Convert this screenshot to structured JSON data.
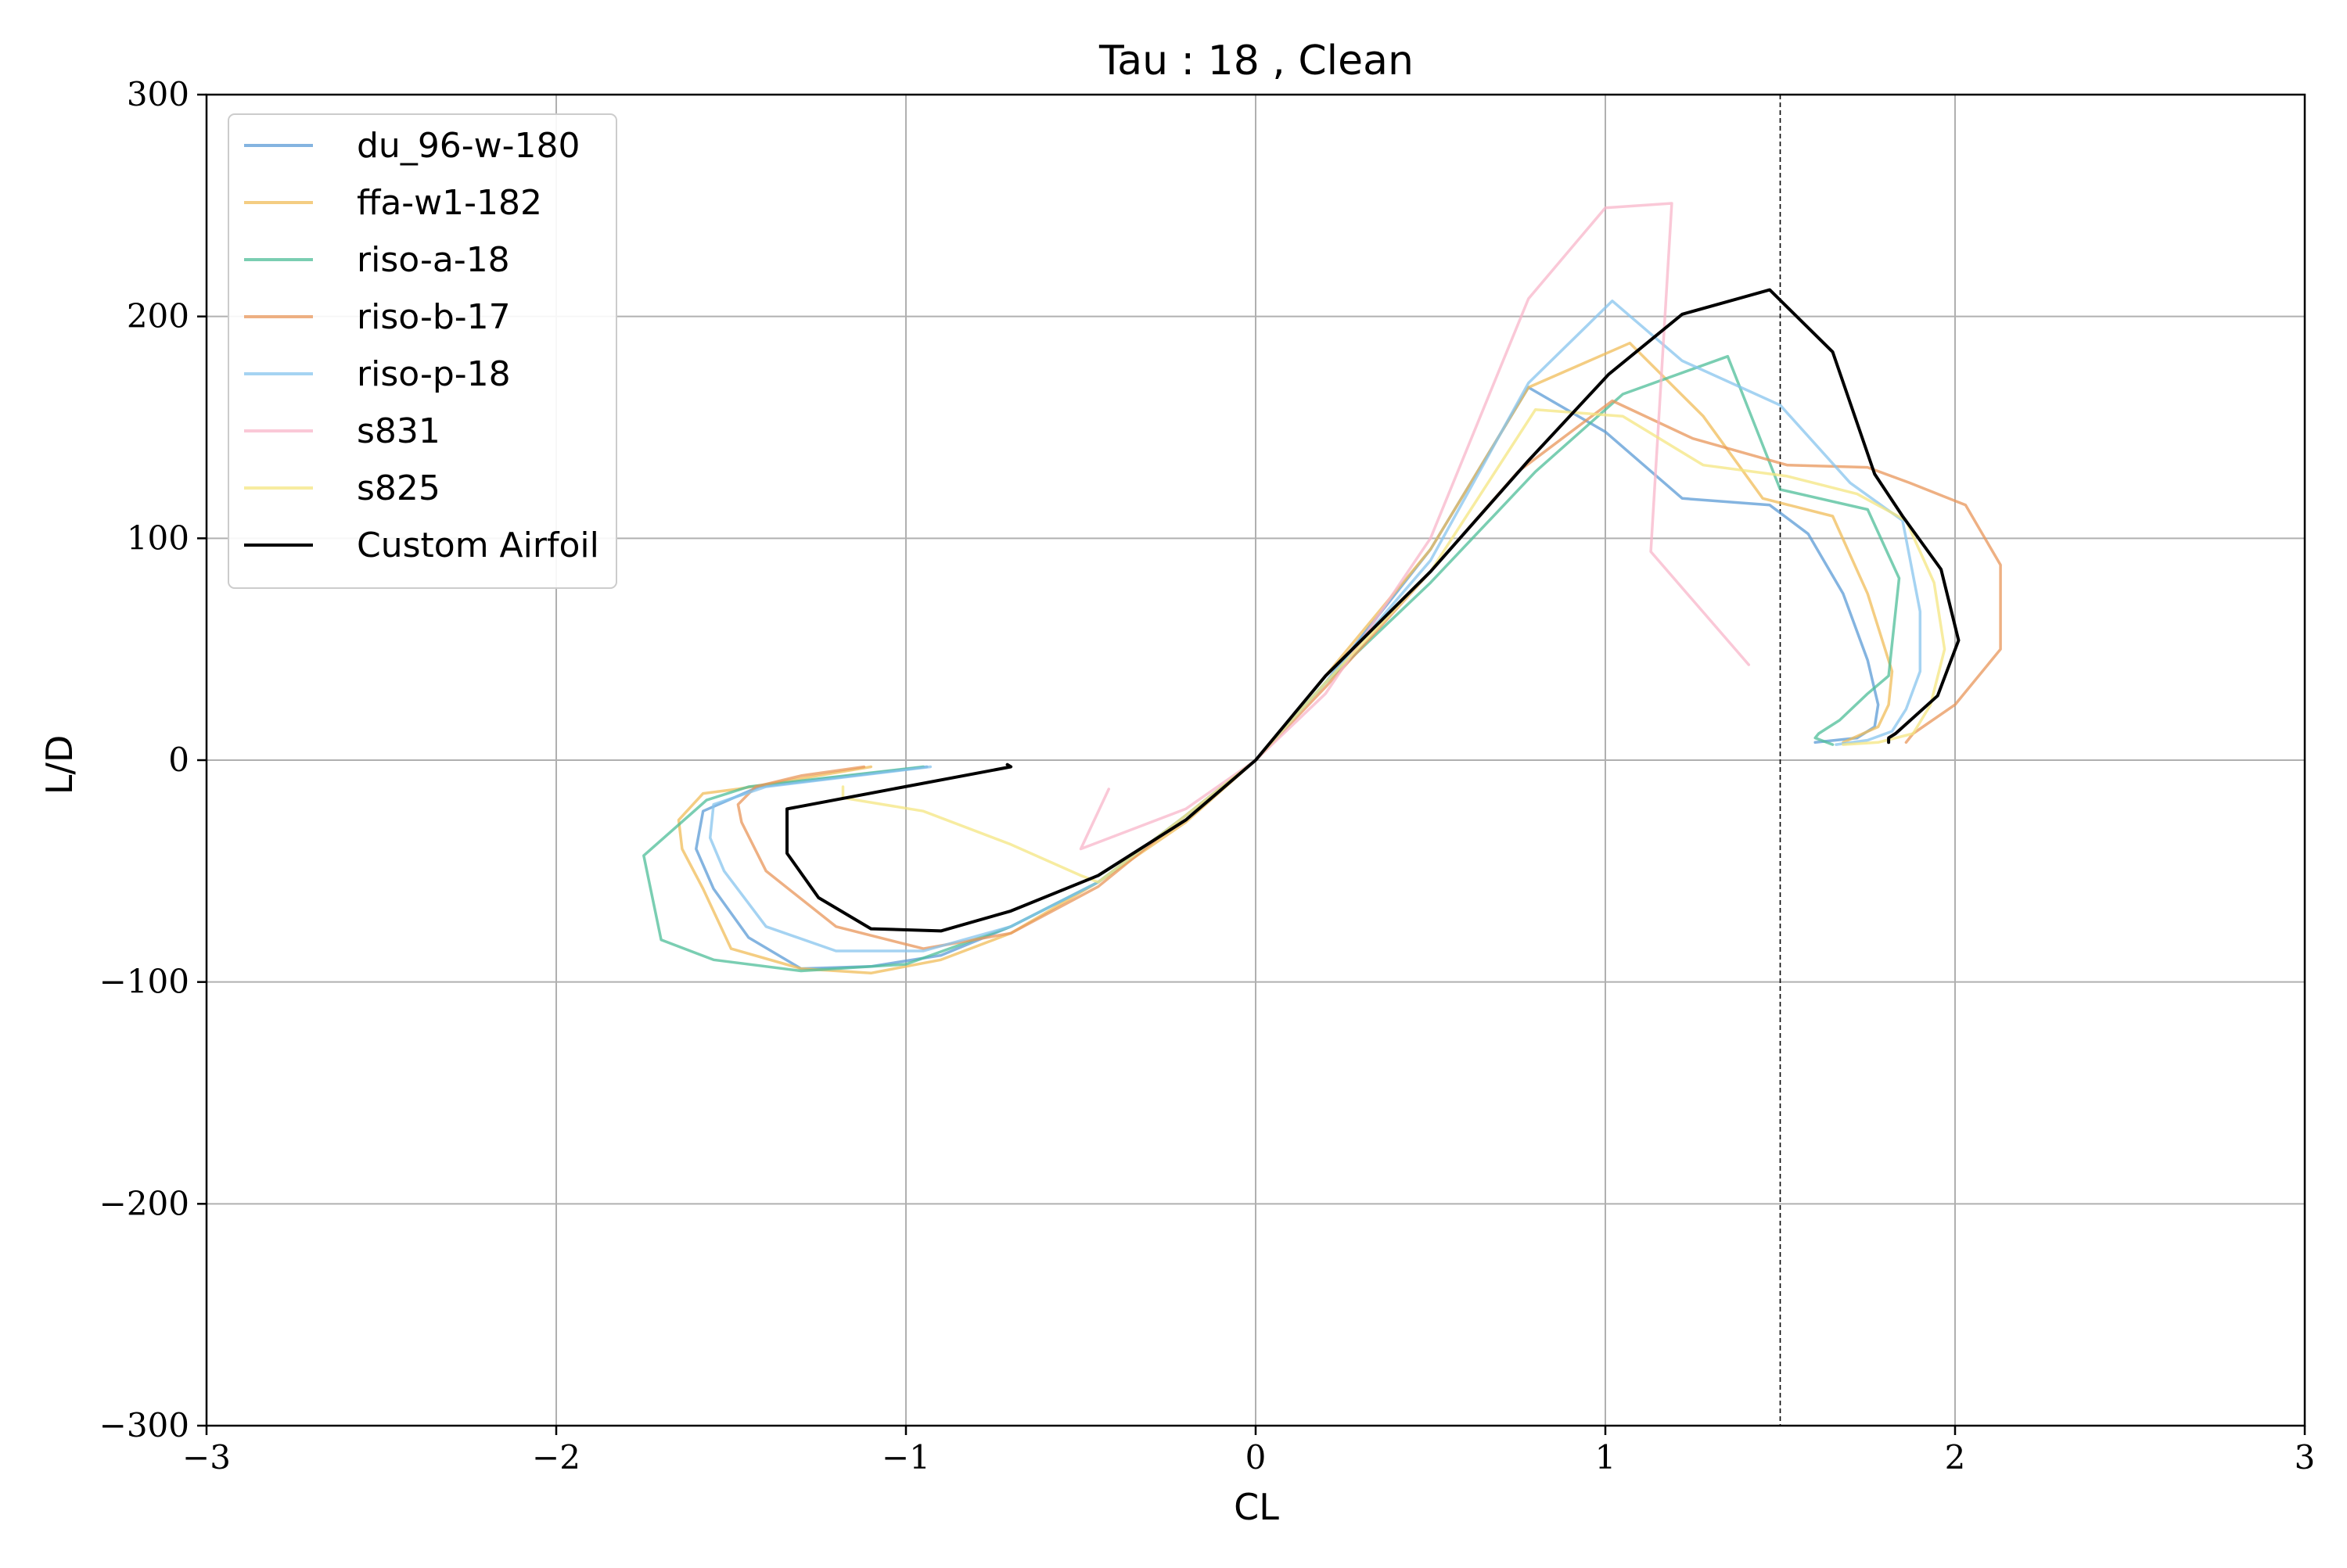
{
  "chart_data": {
    "type": "line",
    "title": "Tau : 18 , Clean",
    "xlabel": "CL",
    "ylabel": "L/D",
    "xlim": [
      -3,
      3
    ],
    "ylim": [
      -300,
      300
    ],
    "xticks": [
      -3,
      -2,
      -1,
      0,
      1,
      2,
      3
    ],
    "yticks": [
      -300,
      -200,
      -100,
      0,
      100,
      200,
      300
    ],
    "xtick_labels": [
      "−3",
      "−2",
      "−1",
      "0",
      "1",
      "2",
      "3"
    ],
    "ytick_labels": [
      "−300",
      "−200",
      "−100",
      "0",
      "100",
      "200",
      "300"
    ],
    "grid": true,
    "legend_position": "upper-left",
    "reference_line": {
      "x": 1.5,
      "style": "dashed"
    },
    "series": [
      {
        "name": "du_96-w-180",
        "color": "#5B9BD5",
        "alpha": 0.75,
        "x": [
          -0.94,
          -1.42,
          -1.58,
          -1.6,
          -1.55,
          -1.45,
          -1.3,
          -1.1,
          -0.9,
          -0.7,
          -0.45,
          -0.2,
          0.0,
          0.2,
          0.5,
          0.78,
          1.0,
          1.22,
          1.47,
          1.58,
          1.68,
          1.75,
          1.78,
          1.77,
          1.72,
          1.6
        ],
        "y": [
          -3,
          -12,
          -23,
          -40,
          -58,
          -80,
          -94,
          -93,
          -88,
          -75,
          -55,
          -25,
          0,
          35,
          95,
          168,
          148,
          118,
          115,
          102,
          75,
          45,
          25,
          15,
          10,
          8
        ]
      },
      {
        "name": "ffa-w1-182",
        "color": "#F0BC58",
        "alpha": 0.75,
        "x": [
          -1.1,
          -1.48,
          -1.58,
          -1.65,
          -1.64,
          -1.58,
          -1.5,
          -1.3,
          -1.1,
          -0.9,
          -0.7,
          -0.45,
          -0.2,
          0.0,
          0.2,
          0.5,
          0.78,
          1.07,
          1.28,
          1.45,
          1.65,
          1.75,
          1.82,
          1.81,
          1.78,
          1.68
        ],
        "y": [
          -3,
          -13,
          -15,
          -27,
          -40,
          -58,
          -85,
          -94,
          -96,
          -90,
          -78,
          -55,
          -28,
          0,
          38,
          95,
          168,
          188,
          155,
          118,
          110,
          75,
          40,
          25,
          15,
          8
        ]
      },
      {
        "name": "riso-a-18",
        "color": "#4DBE98",
        "alpha": 0.75,
        "x": [
          -0.95,
          -1.45,
          -1.57,
          -1.75,
          -1.7,
          -1.55,
          -1.3,
          -1.0,
          -0.7,
          -0.45,
          -0.2,
          0.0,
          0.2,
          0.5,
          0.8,
          1.05,
          1.35,
          1.5,
          1.75,
          1.84,
          1.81,
          1.75,
          1.67,
          1.61,
          1.6,
          1.65
        ],
        "y": [
          -3,
          -12,
          -18,
          -43,
          -81,
          -90,
          -95,
          -92,
          -75,
          -55,
          -25,
          0,
          35,
          80,
          130,
          165,
          182,
          122,
          113,
          82,
          38,
          30,
          18,
          12,
          10,
          7
        ]
      },
      {
        "name": "riso-b-17",
        "color": "#E8955A",
        "alpha": 0.75,
        "x": [
          -1.12,
          -1.3,
          -1.43,
          -1.48,
          -1.47,
          -1.4,
          -1.2,
          -0.95,
          -0.7,
          -0.45,
          -0.2,
          0.0,
          0.2,
          0.5,
          0.75,
          1.02,
          1.25,
          1.52,
          1.75,
          1.87,
          2.03,
          2.13,
          2.13,
          2.0,
          1.88,
          1.86
        ],
        "y": [
          -3,
          -7,
          -12,
          -20,
          -28,
          -50,
          -75,
          -85,
          -78,
          -57,
          -25,
          0,
          33,
          85,
          130,
          162,
          145,
          133,
          132,
          125,
          115,
          88,
          50,
          25,
          12,
          8
        ]
      },
      {
        "name": "riso-p-18",
        "color": "#87C4EE",
        "alpha": 0.75,
        "x": [
          -0.93,
          -1.4,
          -1.55,
          -1.56,
          -1.52,
          -1.4,
          -1.2,
          -0.95,
          -0.7,
          -0.45,
          -0.2,
          0.0,
          0.2,
          0.5,
          0.78,
          1.02,
          1.22,
          1.5,
          1.7,
          1.85,
          1.9,
          1.9,
          1.86,
          1.82,
          1.75,
          1.66
        ],
        "y": [
          -3,
          -12,
          -20,
          -35,
          -50,
          -75,
          -86,
          -86,
          -75,
          -55,
          -25,
          0,
          35,
          90,
          170,
          207,
          180,
          160,
          125,
          108,
          67,
          40,
          23,
          13,
          9,
          7
        ]
      },
      {
        "name": "s831",
        "color": "#F8B5C9",
        "alpha": 0.75,
        "x": [
          -0.42,
          -0.5,
          -0.2,
          0.0,
          0.2,
          0.5,
          0.78,
          1.0,
          1.19,
          1.13,
          1.41
        ],
        "y": [
          -13,
          -40,
          -22,
          0,
          30,
          100,
          208,
          249,
          251,
          94,
          43
        ]
      },
      {
        "name": "s825",
        "color": "#F4E680",
        "alpha": 0.75,
        "x": [
          -1.18,
          -1.18,
          -0.95,
          -0.7,
          -0.5,
          -0.45,
          -0.2,
          0.0,
          0.2,
          0.5,
          0.8,
          1.05,
          1.28,
          1.52,
          1.72,
          1.86,
          1.94,
          1.97,
          1.93,
          1.88,
          1.78,
          1.68
        ],
        "y": [
          -12,
          -17,
          -23,
          -38,
          -52,
          -55,
          -25,
          0,
          35,
          85,
          158,
          155,
          133,
          128,
          120,
          108,
          80,
          50,
          25,
          12,
          8,
          7
        ]
      },
      {
        "name": "Custom Airfoil",
        "color": "#000000",
        "alpha": 1.0,
        "x": [
          -0.71,
          -0.7,
          -1.34,
          -1.34,
          -1.25,
          -1.1,
          -0.9,
          -0.7,
          -0.45,
          -0.2,
          0.0,
          0.2,
          0.5,
          0.78,
          1.01,
          1.22,
          1.47,
          1.65,
          1.77,
          1.85,
          1.96,
          2.01,
          1.95,
          1.83,
          1.81,
          1.81
        ],
        "y": [
          -2,
          -3,
          -22,
          -42,
          -62,
          -76,
          -77,
          -68,
          -52,
          -27,
          0,
          38,
          85,
          135,
          174,
          201,
          212,
          184,
          129,
          110,
          86,
          54,
          29,
          12,
          10,
          8
        ]
      }
    ]
  }
}
